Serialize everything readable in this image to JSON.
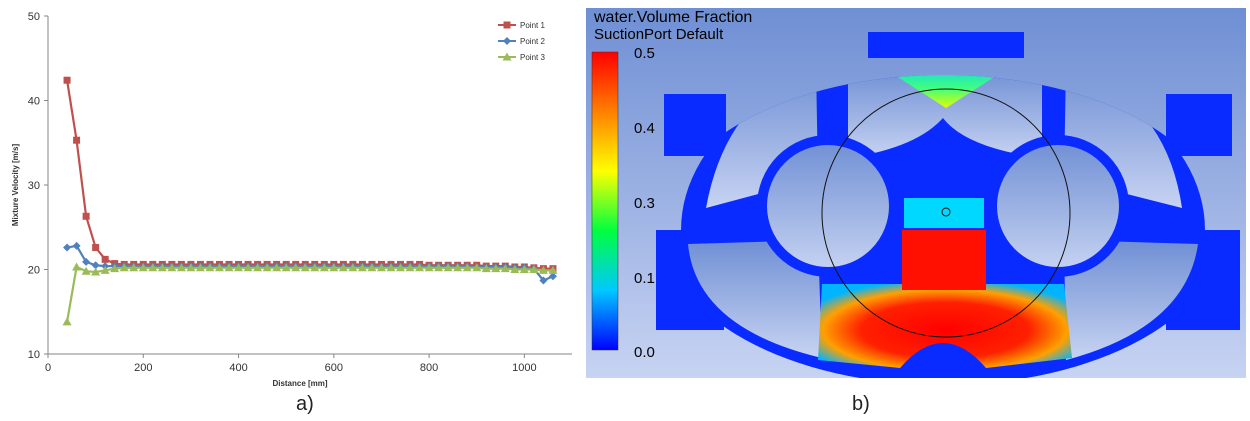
{
  "chart_data": [
    {
      "type": "line",
      "title": "",
      "xlabel": "Distance [mm]",
      "ylabel": "Mixture Velocity [m/s]",
      "xlim": [
        0,
        1100
      ],
      "ylim": [
        10,
        50
      ],
      "xticks": [
        0,
        200,
        400,
        600,
        800,
        1000
      ],
      "yticks": [
        10,
        20,
        30,
        40,
        50
      ],
      "grid": false,
      "legend": "top-right",
      "series": [
        {
          "name": "Point 1",
          "color": "#c0504d",
          "marker": "square",
          "x": [
            40,
            60,
            80,
            100,
            120,
            140,
            160,
            180,
            200,
            220,
            240,
            260,
            280,
            300,
            320,
            340,
            360,
            380,
            400,
            420,
            440,
            460,
            480,
            500,
            520,
            540,
            560,
            580,
            600,
            620,
            640,
            660,
            680,
            700,
            720,
            740,
            760,
            780,
            800,
            820,
            840,
            860,
            880,
            900,
            920,
            940,
            960,
            980,
            1000,
            1020,
            1040,
            1060
          ],
          "values": [
            42.4,
            35.3,
            26.3,
            22.6,
            21.2,
            20.7,
            20.6,
            20.6,
            20.6,
            20.6,
            20.6,
            20.6,
            20.6,
            20.6,
            20.6,
            20.6,
            20.6,
            20.6,
            20.6,
            20.6,
            20.6,
            20.6,
            20.6,
            20.6,
            20.6,
            20.6,
            20.6,
            20.6,
            20.6,
            20.6,
            20.6,
            20.6,
            20.6,
            20.6,
            20.6,
            20.6,
            20.6,
            20.6,
            20.5,
            20.5,
            20.5,
            20.5,
            20.5,
            20.5,
            20.4,
            20.4,
            20.4,
            20.3,
            20.3,
            20.2,
            20.1,
            20.1
          ]
        },
        {
          "name": "Point 2",
          "color": "#4f81bd",
          "marker": "diamond",
          "x": [
            40,
            60,
            80,
            100,
            120,
            140,
            160,
            180,
            200,
            220,
            240,
            260,
            280,
            300,
            320,
            340,
            360,
            380,
            400,
            420,
            440,
            460,
            480,
            500,
            520,
            540,
            560,
            580,
            600,
            620,
            640,
            660,
            680,
            700,
            720,
            740,
            760,
            780,
            800,
            820,
            840,
            860,
            880,
            900,
            920,
            940,
            960,
            980,
            1000,
            1020,
            1040,
            1060
          ],
          "values": [
            22.6,
            22.8,
            20.9,
            20.5,
            20.4,
            20.4,
            20.4,
            20.4,
            20.4,
            20.4,
            20.4,
            20.4,
            20.4,
            20.4,
            20.4,
            20.4,
            20.4,
            20.4,
            20.4,
            20.4,
            20.4,
            20.4,
            20.4,
            20.4,
            20.4,
            20.4,
            20.4,
            20.4,
            20.4,
            20.4,
            20.4,
            20.4,
            20.4,
            20.4,
            20.4,
            20.4,
            20.4,
            20.4,
            20.4,
            20.4,
            20.4,
            20.4,
            20.4,
            20.3,
            20.3,
            20.3,
            20.3,
            20.2,
            20.2,
            20.1,
            18.7,
            19.2
          ]
        },
        {
          "name": "Point 3",
          "color": "#9bbb59",
          "marker": "triangle",
          "x": [
            40,
            60,
            80,
            100,
            120,
            140,
            160,
            180,
            200,
            220,
            240,
            260,
            280,
            300,
            320,
            340,
            360,
            380,
            400,
            420,
            440,
            460,
            480,
            500,
            520,
            540,
            560,
            580,
            600,
            620,
            640,
            660,
            680,
            700,
            720,
            740,
            760,
            780,
            800,
            820,
            840,
            860,
            880,
            900,
            920,
            940,
            960,
            980,
            1000,
            1020,
            1040,
            1060
          ],
          "values": [
            13.8,
            20.3,
            19.8,
            19.7,
            19.9,
            20.1,
            20.2,
            20.2,
            20.2,
            20.2,
            20.2,
            20.2,
            20.2,
            20.2,
            20.2,
            20.2,
            20.2,
            20.2,
            20.2,
            20.2,
            20.2,
            20.2,
            20.2,
            20.2,
            20.2,
            20.2,
            20.2,
            20.2,
            20.2,
            20.2,
            20.2,
            20.2,
            20.2,
            20.2,
            20.2,
            20.2,
            20.2,
            20.2,
            20.2,
            20.2,
            20.2,
            20.2,
            20.2,
            20.2,
            20.1,
            20.1,
            20.1,
            20.0,
            20.0,
            20.0,
            19.9,
            19.9
          ]
        }
      ]
    },
    {
      "type": "heatmap",
      "title": "water.Volume Fraction",
      "subtitle": "SuctionPort Default",
      "colorbar": {
        "ticks": [
          "0.5",
          "0.4",
          "0.3",
          "0.1",
          "0.0"
        ],
        "range": [
          0.0,
          0.5
        ],
        "colors": [
          "#ff0000",
          "#ff8000",
          "#ffff00",
          "#00ff40",
          "#00c8ff",
          "#0000ff"
        ]
      }
    }
  ],
  "captions": {
    "a": "a)",
    "b": "b)"
  }
}
